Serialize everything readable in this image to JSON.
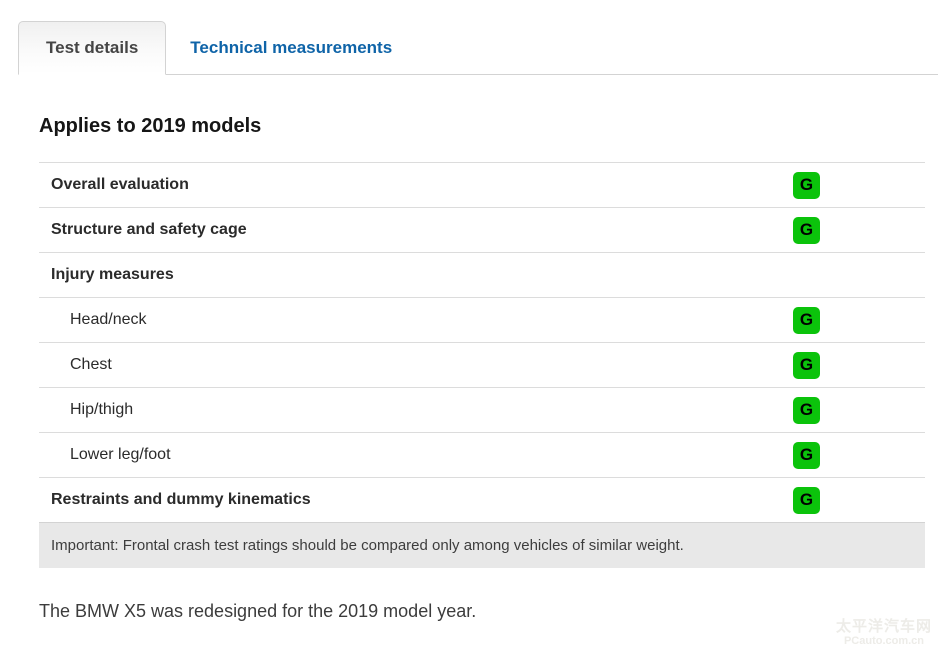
{
  "tabs": [
    {
      "label": "Test details",
      "active": true
    },
    {
      "label": "Technical measurements",
      "active": false
    }
  ],
  "heading": "Applies to 2019 models",
  "table": {
    "rows": [
      {
        "label": "Overall evaluation",
        "rating": "G",
        "bold": true,
        "indent": false
      },
      {
        "label": "Structure and safety cage",
        "rating": "G",
        "bold": true,
        "indent": false
      },
      {
        "label": "Injury measures",
        "rating": null,
        "bold": true,
        "indent": false
      },
      {
        "label": "Head/neck",
        "rating": "G",
        "bold": false,
        "indent": true
      },
      {
        "label": "Chest",
        "rating": "G",
        "bold": false,
        "indent": true
      },
      {
        "label": "Hip/thigh",
        "rating": "G",
        "bold": false,
        "indent": true
      },
      {
        "label": "Lower leg/foot",
        "rating": "G",
        "bold": false,
        "indent": true
      },
      {
        "label": "Restraints and dummy kinematics",
        "rating": "G",
        "bold": true,
        "indent": false
      }
    ],
    "note": "Important: Frontal crash test ratings should be compared only among vehicles of similar weight."
  },
  "footer_text": "The BMW X5 was redesigned for the 2019 model year.",
  "watermark": {
    "line1": "太平洋汽车网",
    "line2": "PCauto.com.cn"
  },
  "colors": {
    "rating_good": "#0bc30b",
    "link_blue": "#0f64a8",
    "note_bg": "#e8e8e8"
  }
}
